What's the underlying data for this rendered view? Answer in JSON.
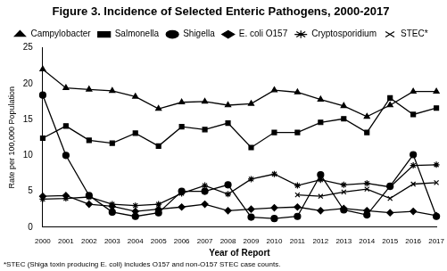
{
  "chart_data": {
    "type": "line",
    "title": "Figure 3. Incidence of Selected Enteric Pathogens, 2000-2017",
    "x_label": "Year of Report",
    "y_label": "Rate per 100,000 Population",
    "annotations": [
      "*STEC (Shiga toxin producing E. coli) includes O157 and non-O157 STEC case counts."
    ],
    "categories": [
      "2000",
      "2001",
      "2002",
      "2003",
      "2004",
      "2005",
      "2006",
      "2007",
      "2008",
      "2009",
      "2010",
      "2011",
      "2012",
      "2013",
      "2014",
      "2015",
      "2016",
      "2017"
    ],
    "series": [
      {
        "name": "Campylobacter",
        "color": "#000000",
        "marker": "triangle",
        "line_style": "solid",
        "values": [
          22,
          19.4,
          19.2,
          19,
          18.2,
          16.5,
          17.4,
          17.5,
          17,
          17.2,
          19.1,
          18.8,
          17.8,
          16.9,
          15.4,
          17,
          18.9,
          18.9
        ]
      },
      {
        "name": "Salmonella",
        "color": "#000000",
        "marker": "square",
        "line_style": "solid",
        "values": [
          12.4,
          14.1,
          12.1,
          11.7,
          13.1,
          11.3,
          14,
          13.6,
          14.5,
          11.1,
          13.2,
          13.2,
          14.6,
          15.1,
          13.2,
          18,
          15.7,
          16.6
        ]
      },
      {
        "name": "Shigella",
        "color": "#000000",
        "marker": "circle",
        "line_style": "solid",
        "values": [
          18.4,
          10,
          4.4,
          2.1,
          1.5,
          2,
          5,
          5,
          5.9,
          1.4,
          1.2,
          1.5,
          7.3,
          2.4,
          1.7,
          5.7,
          10.1,
          1.5
        ]
      },
      {
        "name": "E. coli O157",
        "color": "#000000",
        "marker": "diamond",
        "line_style": "solid",
        "values": [
          4.3,
          4.4,
          3.2,
          2.9,
          2.2,
          2.5,
          2.8,
          3.2,
          2.3,
          2.5,
          2.7,
          2.8,
          2.3,
          2.6,
          2.3,
          2,
          2.2,
          1.6
        ]
      },
      {
        "name": "Cryptosporidium",
        "color": "#000000",
        "marker": "star",
        "line_style": "solid",
        "values": [
          3.9,
          4,
          4.2,
          3.2,
          3,
          3.2,
          4.7,
          5.8,
          4.6,
          6.7,
          7.4,
          5.8,
          6.6,
          5.9,
          6.1,
          5.6,
          8.6,
          8.7
        ]
      },
      {
        "name": "STEC*",
        "color": "#000000",
        "marker": "x",
        "line_style": "solid",
        "values": [
          null,
          null,
          null,
          null,
          null,
          null,
          null,
          null,
          null,
          null,
          null,
          4.5,
          4.3,
          4.9,
          5.3,
          4,
          6,
          6.2
        ]
      }
    ],
    "ylim": [
      0,
      25
    ],
    "yticks": [
      0,
      5,
      10,
      15,
      20,
      25
    ],
    "grid": false,
    "legend": "top"
  }
}
